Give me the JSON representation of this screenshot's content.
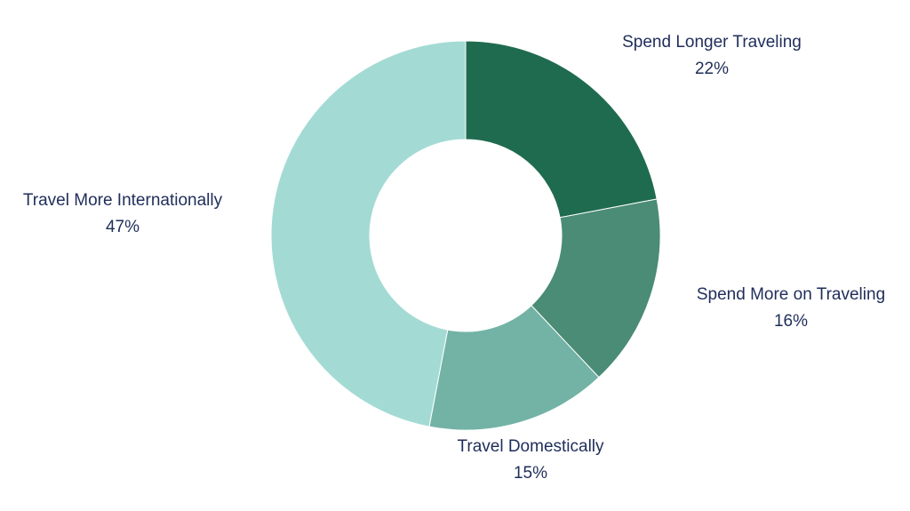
{
  "chart_data": {
    "type": "pie",
    "categories": [
      "Spend Longer Traveling",
      "Spend More on Traveling",
      "Travel Domestically",
      "Travel More Internationally"
    ],
    "values": [
      22,
      16,
      15,
      47
    ],
    "value_labels": [
      "22%",
      "16%",
      "15%",
      "47%"
    ],
    "colors": [
      "#1f6b4f",
      "#4a8c76",
      "#72b3a6",
      "#a3dbd4"
    ]
  }
}
